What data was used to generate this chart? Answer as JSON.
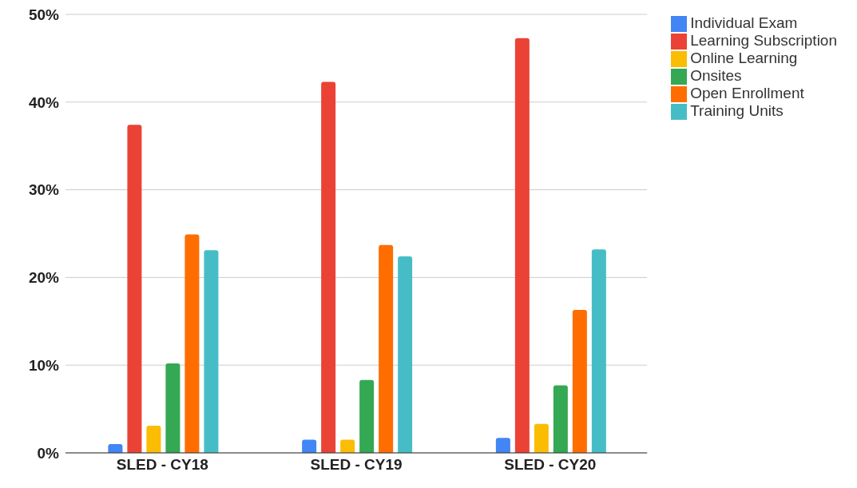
{
  "chart_data": {
    "type": "bar",
    "categories": [
      "SLED - CY18",
      "SLED - CY19",
      "SLED - CY20"
    ],
    "series": [
      {
        "name": "Individual Exam",
        "color": "#4285f4",
        "values": [
          1.0,
          1.5,
          1.7
        ]
      },
      {
        "name": "Learning Subscription",
        "color": "#ea4335",
        "values": [
          37.4,
          42.3,
          47.3
        ]
      },
      {
        "name": "Online Learning",
        "color": "#fbbc04",
        "values": [
          3.1,
          1.5,
          3.3
        ]
      },
      {
        "name": "Onsites",
        "color": "#34a853",
        "values": [
          10.2,
          8.3,
          7.7
        ]
      },
      {
        "name": "Open Enrollment",
        "color": "#ff6d01",
        "values": [
          24.9,
          23.7,
          16.3
        ]
      },
      {
        "name": "Training Units",
        "color": "#46bdc6",
        "values": [
          23.1,
          22.4,
          23.2
        ]
      }
    ],
    "ylim": [
      0,
      50
    ],
    "yticks": [
      {
        "value": 0,
        "label": "0%"
      },
      {
        "value": 10,
        "label": "10%"
      },
      {
        "value": 20,
        "label": "20%"
      },
      {
        "value": 30,
        "label": "30%"
      },
      {
        "value": 40,
        "label": "40%"
      },
      {
        "value": 50,
        "label": "50%"
      }
    ],
    "grid": "y",
    "legend": "top right"
  }
}
